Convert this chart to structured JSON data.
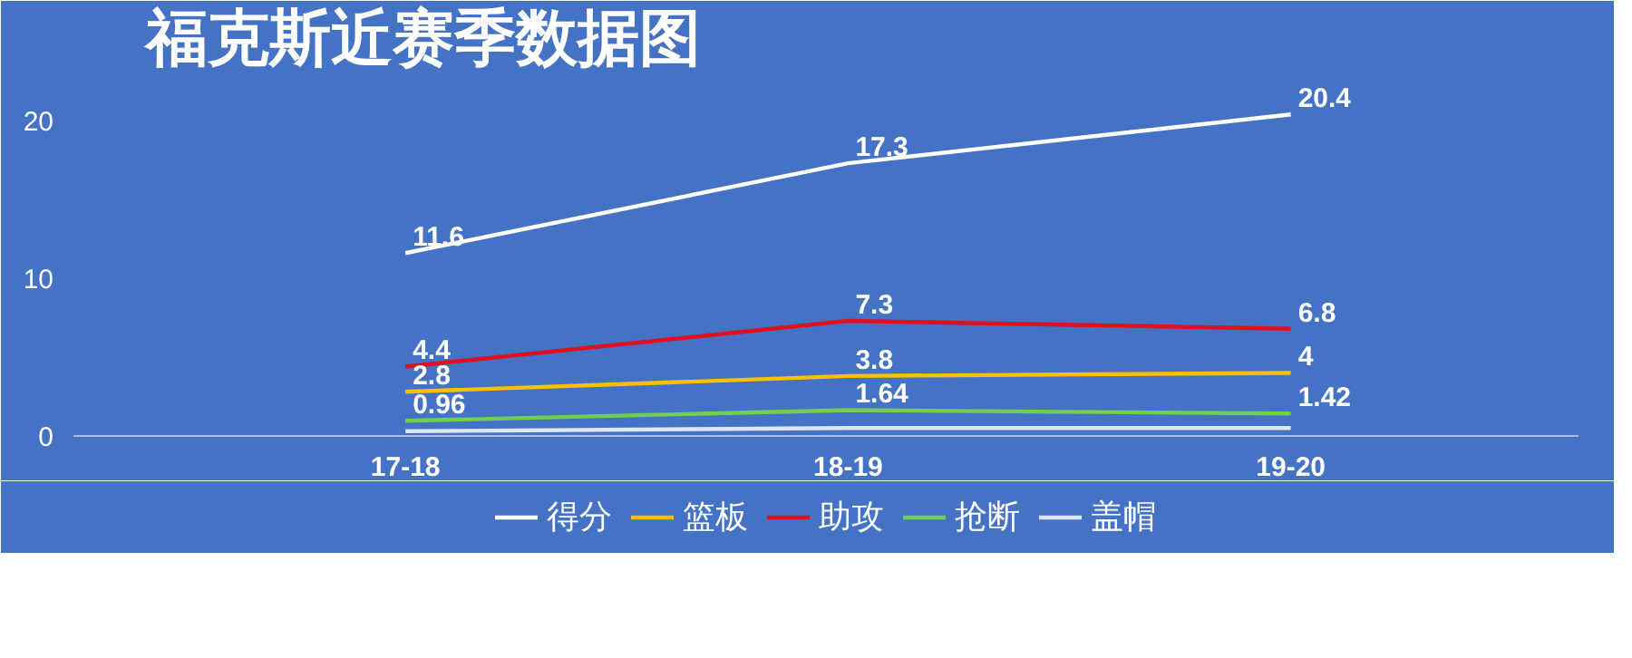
{
  "chart_data": {
    "type": "line",
    "title": "福克斯近赛季数据图",
    "categories": [
      "17-18",
      "18-19",
      "19-20"
    ],
    "ylim": [
      0,
      23
    ],
    "yticks": [
      0,
      10,
      20
    ],
    "grid": false,
    "legend": "bottom",
    "series": [
      {
        "name": "得分",
        "color": "#ffffff",
        "values": [
          11.6,
          17.3,
          20.4
        ],
        "value_labels": [
          "11.6",
          "17.3",
          "20.4"
        ]
      },
      {
        "name": "篮板",
        "color": "#ffc000",
        "values": [
          2.8,
          3.8,
          4
        ],
        "value_labels": [
          "2.8",
          "3.8",
          "4"
        ]
      },
      {
        "name": "助攻",
        "color": "#e0101e",
        "values": [
          4.4,
          7.3,
          6.8
        ],
        "value_labels": [
          "4.4",
          "7.3",
          "6.8"
        ]
      },
      {
        "name": "抢断",
        "color": "#70d050",
        "values": [
          0.96,
          1.64,
          1.42
        ],
        "value_labels": [
          "0.96",
          "1.64",
          "1.42"
        ]
      },
      {
        "name": "盖帽",
        "color": "#dde6f5",
        "values": [
          0.3,
          0.5,
          0.5
        ]
      }
    ]
  }
}
